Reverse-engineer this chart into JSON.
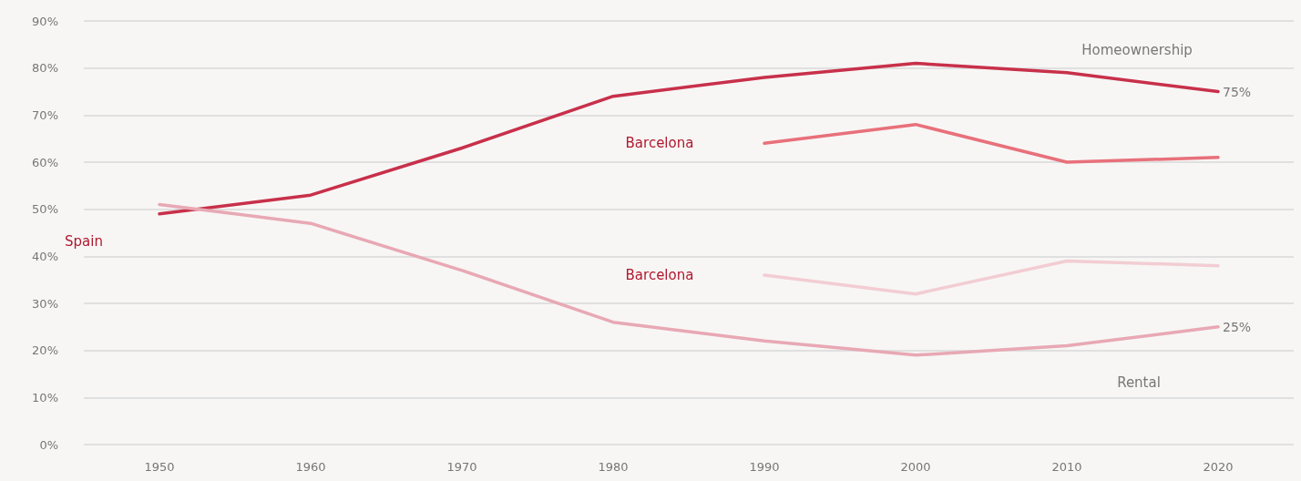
{
  "chart_data": {
    "type": "line",
    "x": [
      1950,
      1960,
      1970,
      1980,
      1990,
      2000,
      2010,
      2020
    ],
    "series": [
      {
        "color": "#c8304a",
        "values": [
          49,
          53,
          63,
          74,
          78,
          81,
          79,
          75
        ],
        "value_labels": [
          null,
          null,
          null,
          null,
          null,
          null,
          null,
          "75%"
        ]
      },
      {
        "color": "#e8707a",
        "values": [
          null,
          null,
          null,
          null,
          64,
          68,
          60,
          61
        ]
      },
      {
        "color": "#e8a8b4",
        "values": [
          51,
          47,
          37,
          26,
          22,
          19,
          21,
          25
        ],
        "value_labels": [
          null,
          null,
          null,
          null,
          null,
          null,
          null,
          "25%"
        ]
      },
      {
        "color": "#f2cdd2",
        "values": [
          null,
          null,
          null,
          null,
          36,
          32,
          39,
          38
        ]
      }
    ],
    "xlim": [
      1945,
      2025
    ],
    "xticks": [
      1950,
      1960,
      1970,
      1980,
      1990,
      2000,
      2010,
      2020
    ],
    "ylim": [
      0,
      90
    ],
    "yticks": [
      {
        "value": 0,
        "label": "0%"
      },
      {
        "value": 10,
        "label": "10%"
      },
      {
        "value": 20,
        "label": "20%"
      },
      {
        "value": 30,
        "label": "30%"
      },
      {
        "value": 40,
        "label": "40%"
      },
      {
        "value": 50,
        "label": "50%"
      },
      {
        "value": 60,
        "label": "60%"
      },
      {
        "value": 70,
        "label": "70%"
      },
      {
        "value": 80,
        "label": "80%"
      },
      {
        "value": 90,
        "label": "90%"
      }
    ],
    "grid": "y",
    "marker": "none",
    "line_style": "solid",
    "annotations": [
      "Homeownership",
      "Rental",
      "Spain",
      "Barcelona",
      "Barcelona"
    ]
  }
}
